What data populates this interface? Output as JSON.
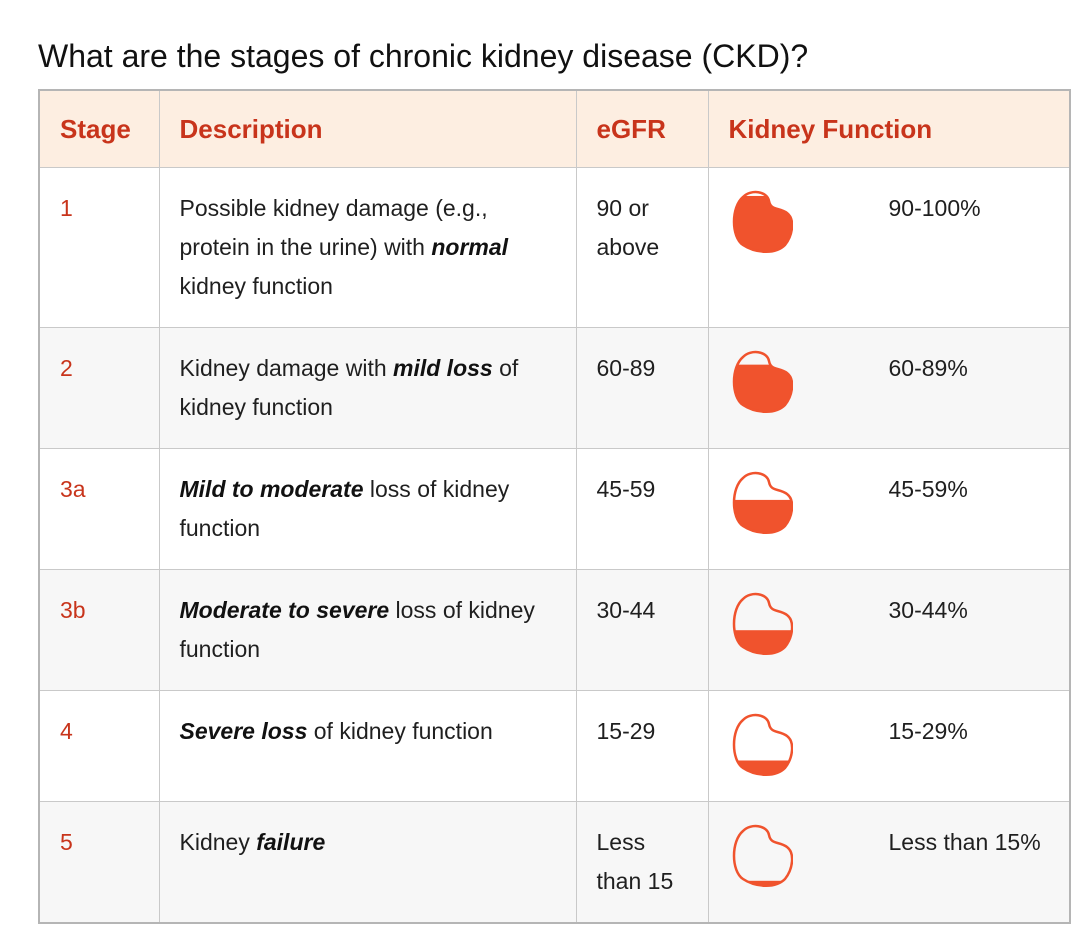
{
  "title": "What are the stages of chronic kidney disease (CKD)?",
  "accent_color": "#c8341b",
  "kidney_fill_color": "#f0532d",
  "header_bg": "#fdeee1",
  "columns": [
    "Stage",
    "Description",
    "eGFR",
    "Kidney Function"
  ],
  "rows": [
    {
      "stage": "1",
      "desc_before": "Possible kidney damage (e.g., protein in the urine) with ",
      "desc_bold": "normal",
      "desc_after": " kidney function",
      "egfr": "90 or above",
      "function": "90-100%",
      "fill": 0.92
    },
    {
      "stage": "2",
      "desc_before": "Kidney damage with ",
      "desc_bold": "mild loss",
      "desc_after": " of kidney function",
      "egfr": "60-89",
      "function": "60-89%",
      "fill": 0.78
    },
    {
      "stage": "3a",
      "desc_before": "",
      "desc_bold": "Mild to moderate",
      "desc_after": " loss of kidney function",
      "egfr": "45-59",
      "function": "45-59%",
      "fill": 0.55
    },
    {
      "stage": "3b",
      "desc_before": "",
      "desc_bold": "Moderate to severe",
      "desc_after": " loss of kidney function",
      "egfr": "30-44",
      "function": "30-44%",
      "fill": 0.4
    },
    {
      "stage": "4",
      "desc_before": "",
      "desc_bold": "Severe loss",
      "desc_after": " of kidney function",
      "egfr": "15-29",
      "function": "15-29%",
      "fill": 0.25
    },
    {
      "stage": "5",
      "desc_before": "Kidney ",
      "desc_bold": "failure",
      "desc_after": "",
      "egfr": "Less than 15",
      "function": "Less than 15%",
      "fill": 0.1
    }
  ]
}
